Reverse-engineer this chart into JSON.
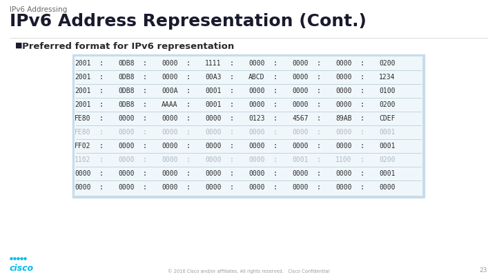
{
  "slide_subtitle": "IPv6 Addressing",
  "slide_title": "IPv6 Address Representation (Cont.)",
  "bullet": "Preferred format for IPv6 representation",
  "table_rows": [
    [
      "2001",
      "0DB8",
      "0000",
      "1111",
      "0000",
      "0000",
      "0000",
      "0200"
    ],
    [
      "2001",
      "0DB8",
      "0000",
      "00A3",
      "ABCD",
      "0000",
      "0000",
      "1234"
    ],
    [
      "2001",
      "0DB8",
      "000A",
      "0001",
      "0000",
      "0000",
      "0000",
      "0100"
    ],
    [
      "2001",
      "0DB8",
      "AAAA",
      "0001",
      "0000",
      "0000",
      "0000",
      "0200"
    ],
    [
      "FE80",
      "0000",
      "0000",
      "0000",
      "0123",
      "4567",
      "89AB",
      "CDEF"
    ],
    [
      "FE80",
      "0000",
      "0000",
      "0000",
      "0000",
      "0000",
      "0000",
      "0001"
    ],
    [
      "FF02",
      "0000",
      "0000",
      "0000",
      "0000",
      "0000",
      "0000",
      "0001"
    ],
    [
      "1102",
      "0000",
      "0000",
      "0000",
      "0000",
      "0001",
      "1100",
      "0200"
    ],
    [
      "0000",
      "0000",
      "0000",
      "0000",
      "0000",
      "0000",
      "0000",
      "0001"
    ],
    [
      "0000",
      "0000",
      "0000",
      "0000",
      "0000",
      "0000",
      "0000",
      "0000"
    ]
  ],
  "row_styles": [
    "normal",
    "normal",
    "normal",
    "normal",
    "normal",
    "faded",
    "normal",
    "faded",
    "normal",
    "normal"
  ],
  "bg_color": "#ffffff",
  "table_outer_bg": "#c8dce8",
  "table_inner_bg": "#f0f7fb",
  "separator_color": "#b8cfd8",
  "title_color": "#1a1a2e",
  "subtitle_color": "#666666",
  "normal_text_color": "#2a2a2a",
  "faded_text_color": "#b0b8c0",
  "bullet_square_color": "#1a1a2e",
  "cisco_blue": "#00bceb",
  "footer_color": "#999999",
  "slide_number": "23",
  "footer_text": "© 2016 Cisco and/or affiliates. All rights reserved.   Cisco Confidential"
}
